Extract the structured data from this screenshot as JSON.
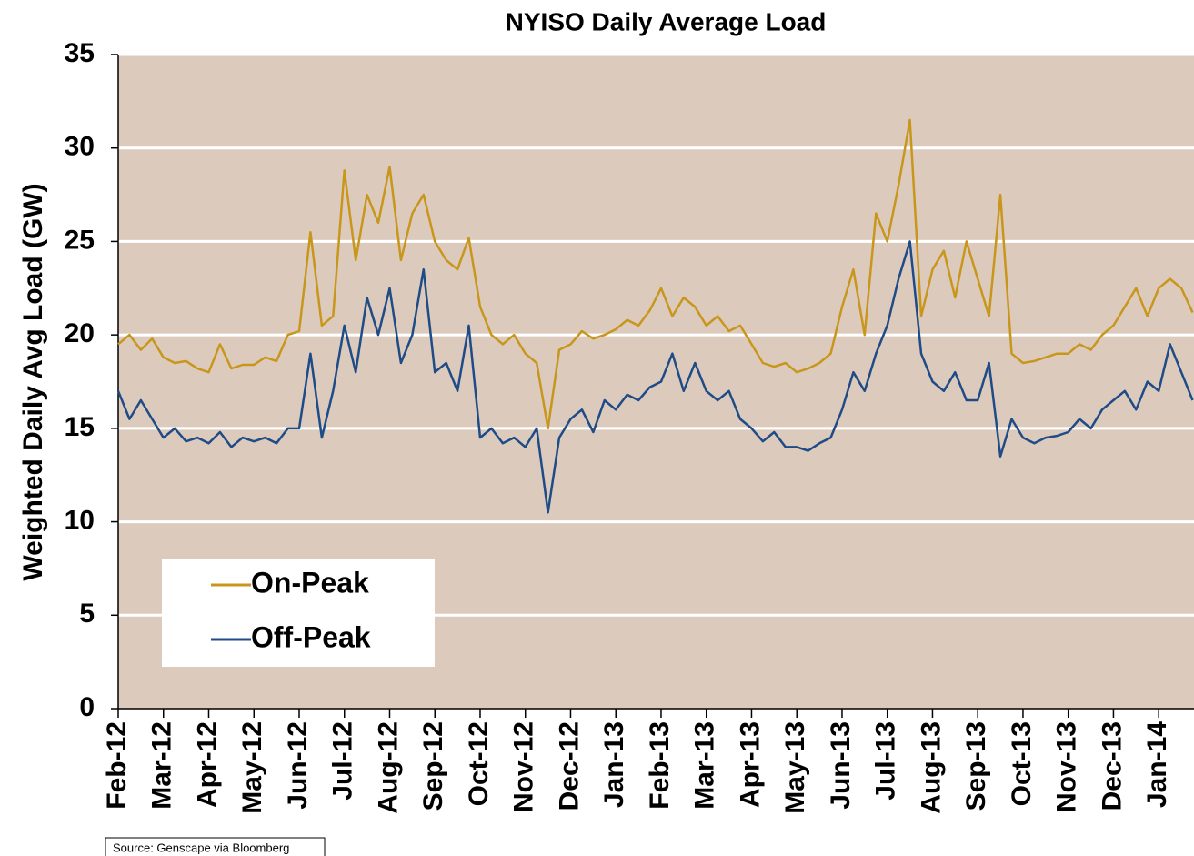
{
  "chart_data": {
    "type": "line",
    "title": "NYISO Daily Average Load",
    "y_label": "Weighted Daily Avg Load (GW)",
    "source": "Source: Genscape via Bloomberg",
    "x": [
      0,
      0.25,
      0.5,
      0.75,
      1,
      1.25,
      1.5,
      1.75,
      2,
      2.25,
      2.5,
      2.75,
      3,
      3.25,
      3.5,
      3.75,
      4,
      4.25,
      4.5,
      4.75,
      5,
      5.25,
      5.5,
      5.75,
      6,
      6.25,
      6.5,
      6.75,
      7,
      7.25,
      7.5,
      7.75,
      8,
      8.25,
      8.5,
      8.75,
      9,
      9.25,
      9.5,
      9.75,
      10,
      10.25,
      10.5,
      10.75,
      11,
      11.25,
      11.5,
      11.75,
      12,
      12.25,
      12.5,
      12.75,
      13,
      13.25,
      13.5,
      13.75,
      14,
      14.25,
      14.5,
      14.75,
      15,
      15.25,
      15.5,
      15.75,
      16,
      16.25,
      16.5,
      16.75,
      17,
      17.25,
      17.5,
      17.75,
      18,
      18.25,
      18.5,
      18.75,
      19,
      19.25,
      19.5,
      19.75,
      20,
      20.25,
      20.5,
      20.75,
      21,
      21.25,
      21.5,
      21.75,
      22,
      22.25,
      22.5,
      22.75,
      23,
      23.25,
      23.5,
      23.75
    ],
    "series": [
      {
        "name": "On-Peak",
        "color": "#c9961c",
        "values": [
          19.5,
          20,
          19.2,
          19.8,
          18.8,
          18.5,
          18.6,
          18.2,
          18,
          19.5,
          18.2,
          18.4,
          18.4,
          18.8,
          18.6,
          20,
          20.2,
          25.5,
          20.5,
          21,
          28.8,
          24,
          27.5,
          26,
          29,
          24,
          26.5,
          27.5,
          25,
          24,
          23.5,
          25.2,
          21.5,
          20,
          19.5,
          20,
          19,
          18.5,
          15,
          19.2,
          19.5,
          20.2,
          19.8,
          20,
          20.3,
          20.8,
          20.5,
          21.3,
          22.5,
          21,
          22,
          21.5,
          20.5,
          21,
          20.2,
          20.5,
          19.5,
          18.5,
          18.3,
          18.5,
          18,
          18.2,
          18.5,
          19,
          21.5,
          23.5,
          20,
          26.5,
          25,
          28,
          31.5,
          21,
          23.5,
          24.5,
          22,
          25,
          23,
          21,
          27.5,
          19,
          18.5,
          18.6,
          18.8,
          19,
          19,
          19.5,
          19.2,
          20,
          20.5,
          21.5,
          22.5,
          21,
          22.5,
          23,
          22.5,
          21.2
        ]
      },
      {
        "name": "Off-Peak",
        "color": "#1f4b87",
        "values": [
          17,
          15.5,
          16.5,
          15.5,
          14.5,
          15,
          14.3,
          14.5,
          14.2,
          14.8,
          14,
          14.5,
          14.3,
          14.5,
          14.2,
          15,
          15,
          19,
          14.5,
          17,
          20.5,
          18,
          22,
          20,
          22.5,
          18.5,
          20,
          23.5,
          18,
          18.5,
          17,
          20.5,
          14.5,
          15,
          14.2,
          14.5,
          14,
          15,
          10.5,
          14.5,
          15.5,
          16,
          14.8,
          16.5,
          16,
          16.8,
          16.5,
          17.2,
          17.5,
          19,
          17,
          18.5,
          17,
          16.5,
          17,
          15.5,
          15,
          14.3,
          14.8,
          14,
          14,
          13.8,
          14.2,
          14.5,
          16,
          18,
          17,
          19,
          20.5,
          23,
          25,
          19,
          17.5,
          17,
          18,
          16.5,
          16.5,
          18.5,
          13.5,
          15.5,
          14.5,
          14.2,
          14.5,
          14.6,
          14.8,
          15.5,
          15,
          16,
          16.5,
          17,
          16,
          17.5,
          17,
          19.5,
          18,
          16.5
        ]
      }
    ],
    "xlim": [
      0,
      23.78
    ],
    "xticks": [
      {
        "value": 0,
        "label": "Feb-12"
      },
      {
        "value": 1,
        "label": "Mar-12"
      },
      {
        "value": 2,
        "label": "Apr-12"
      },
      {
        "value": 3,
        "label": "May-12"
      },
      {
        "value": 4,
        "label": "Jun-12"
      },
      {
        "value": 5,
        "label": "Jul-12"
      },
      {
        "value": 6,
        "label": "Aug-12"
      },
      {
        "value": 7,
        "label": "Sep-12"
      },
      {
        "value": 8,
        "label": "Oct-12"
      },
      {
        "value": 9,
        "label": "Nov-12"
      },
      {
        "value": 10,
        "label": "Dec-12"
      },
      {
        "value": 11,
        "label": "Jan-13"
      },
      {
        "value": 12,
        "label": "Feb-13"
      },
      {
        "value": 13,
        "label": "Mar-13"
      },
      {
        "value": 14,
        "label": "Apr-13"
      },
      {
        "value": 15,
        "label": "May-13"
      },
      {
        "value": 16,
        "label": "Jun-13"
      },
      {
        "value": 17,
        "label": "Jul-13"
      },
      {
        "value": 18,
        "label": "Aug-13"
      },
      {
        "value": 19,
        "label": "Sep-13"
      },
      {
        "value": 20,
        "label": "Oct-13"
      },
      {
        "value": 21,
        "label": "Nov-13"
      },
      {
        "value": 22,
        "label": "Dec-13"
      },
      {
        "value": 23,
        "label": "Jan-14"
      }
    ],
    "ylim": [
      0,
      35
    ],
    "yticks": [
      0,
      5,
      10,
      15,
      20,
      25,
      30,
      35
    ],
    "grid": true,
    "background": "#dccbbd"
  }
}
